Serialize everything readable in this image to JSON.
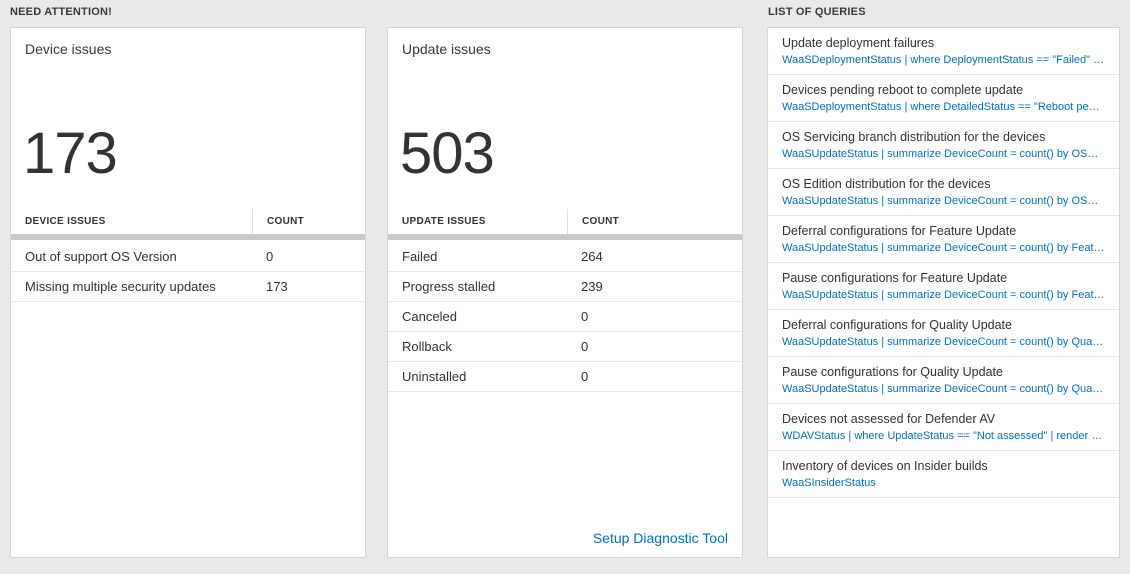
{
  "colors": {
    "accent_blue": "#0072c6",
    "page_bg": "#e9e9e9"
  },
  "need_attention": {
    "header": "NEED ATTENTION!",
    "device_card": {
      "title": "Device issues",
      "count": "173",
      "col_label": "DEVICE ISSUES",
      "col_count": "COUNT",
      "rows": [
        {
          "label": "Out of support OS Version",
          "value": "0"
        },
        {
          "label": "Missing multiple security updates",
          "value": "173"
        }
      ]
    },
    "update_card": {
      "title": "Update issues",
      "count": "503",
      "col_label": "UPDATE ISSUES",
      "col_count": "COUNT",
      "rows": [
        {
          "label": "Failed",
          "value": "264"
        },
        {
          "label": "Progress stalled",
          "value": "239"
        },
        {
          "label": "Canceled",
          "value": "0"
        },
        {
          "label": "Rollback",
          "value": "0"
        },
        {
          "label": "Uninstalled",
          "value": "0"
        }
      ],
      "footer_link": "Setup Diagnostic Tool"
    }
  },
  "queries": {
    "header": "LIST OF QUERIES",
    "items": [
      {
        "title": "Update deployment failures",
        "query": "WaaSDeploymentStatus | where DeploymentStatus == \"Failed\" |…"
      },
      {
        "title": "Devices pending reboot to complete update",
        "query": "WaaSDeploymentStatus | where DetailedStatus == \"Reboot pend…"
      },
      {
        "title": "OS Servicing branch distribution for the devices",
        "query": "WaaSUpdateStatus | summarize DeviceCount = count() by OSSer…"
      },
      {
        "title": "OS Edition distribution for the devices",
        "query": "WaaSUpdateStatus | summarize DeviceCount = count() by OSEdit…"
      },
      {
        "title": "Deferral configurations for Feature Update",
        "query": "WaaSUpdateStatus | summarize DeviceCount = count() by Featur…"
      },
      {
        "title": "Pause configurations for Feature Update",
        "query": "WaaSUpdateStatus | summarize DeviceCount = count() by Featur…"
      },
      {
        "title": "Deferral configurations for Quality Update",
        "query": "WaaSUpdateStatus | summarize DeviceCount = count() by Qualit…"
      },
      {
        "title": "Pause configurations for Quality Update",
        "query": "WaaSUpdateStatus | summarize DeviceCount = count() by Qualit…"
      },
      {
        "title": "Devices not assessed for Defender AV",
        "query": "WDAVStatus | where UpdateStatus == \"Not assessed\" | render ta…"
      },
      {
        "title": "Inventory of devices on Insider builds",
        "query": "WaaSInsiderStatus"
      }
    ]
  }
}
